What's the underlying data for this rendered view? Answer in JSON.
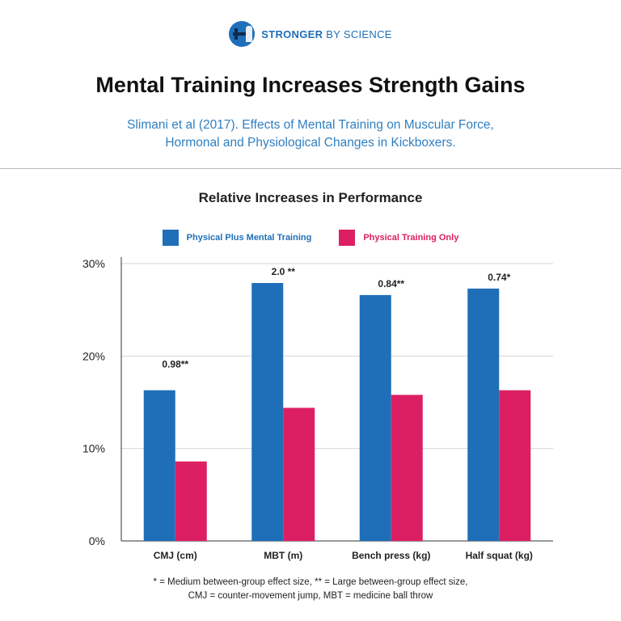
{
  "brand": {
    "name_bold": "STRONGER",
    "name_light": "BY SCIENCE",
    "logo_icon": "barbell-lifter-icon"
  },
  "header": {
    "title": "Mental Training Increases Strength Gains",
    "subtitle_line1": "Slimani et al (2017). Effects of Mental Training on Muscular Force,",
    "subtitle_line2": "Hormonal and Physiological Changes in Kickboxers."
  },
  "chart_data": {
    "type": "bar",
    "title": "Relative Increases in Performance",
    "categories": [
      "CMJ (cm)",
      "MBT (m)",
      "Bench press (kg)",
      "Half squat (kg)"
    ],
    "series": [
      {
        "name": "Physical Plus Mental Training",
        "color": "#1f6fb8",
        "values": [
          16.3,
          27.9,
          26.6,
          27.3
        ]
      },
      {
        "name": "Physical Training Only",
        "color": "#dc1f63",
        "values": [
          8.6,
          14.4,
          15.8,
          16.3
        ]
      }
    ],
    "annotations": [
      "0.98**",
      "2.0 **",
      "0.84**",
      "0.74*"
    ],
    "yticks": [
      "0%",
      "10%",
      "20%",
      "30%"
    ],
    "ytick_values": [
      0,
      10,
      20,
      30
    ],
    "ylim": [
      0,
      30
    ],
    "grid": true,
    "legend_position": "top-center"
  },
  "footnote": {
    "line1": "* = Medium between-group effect size, ** = Large between-group effect size,",
    "line2": "CMJ = counter-movement jump, MBT = medicine ball throw"
  }
}
